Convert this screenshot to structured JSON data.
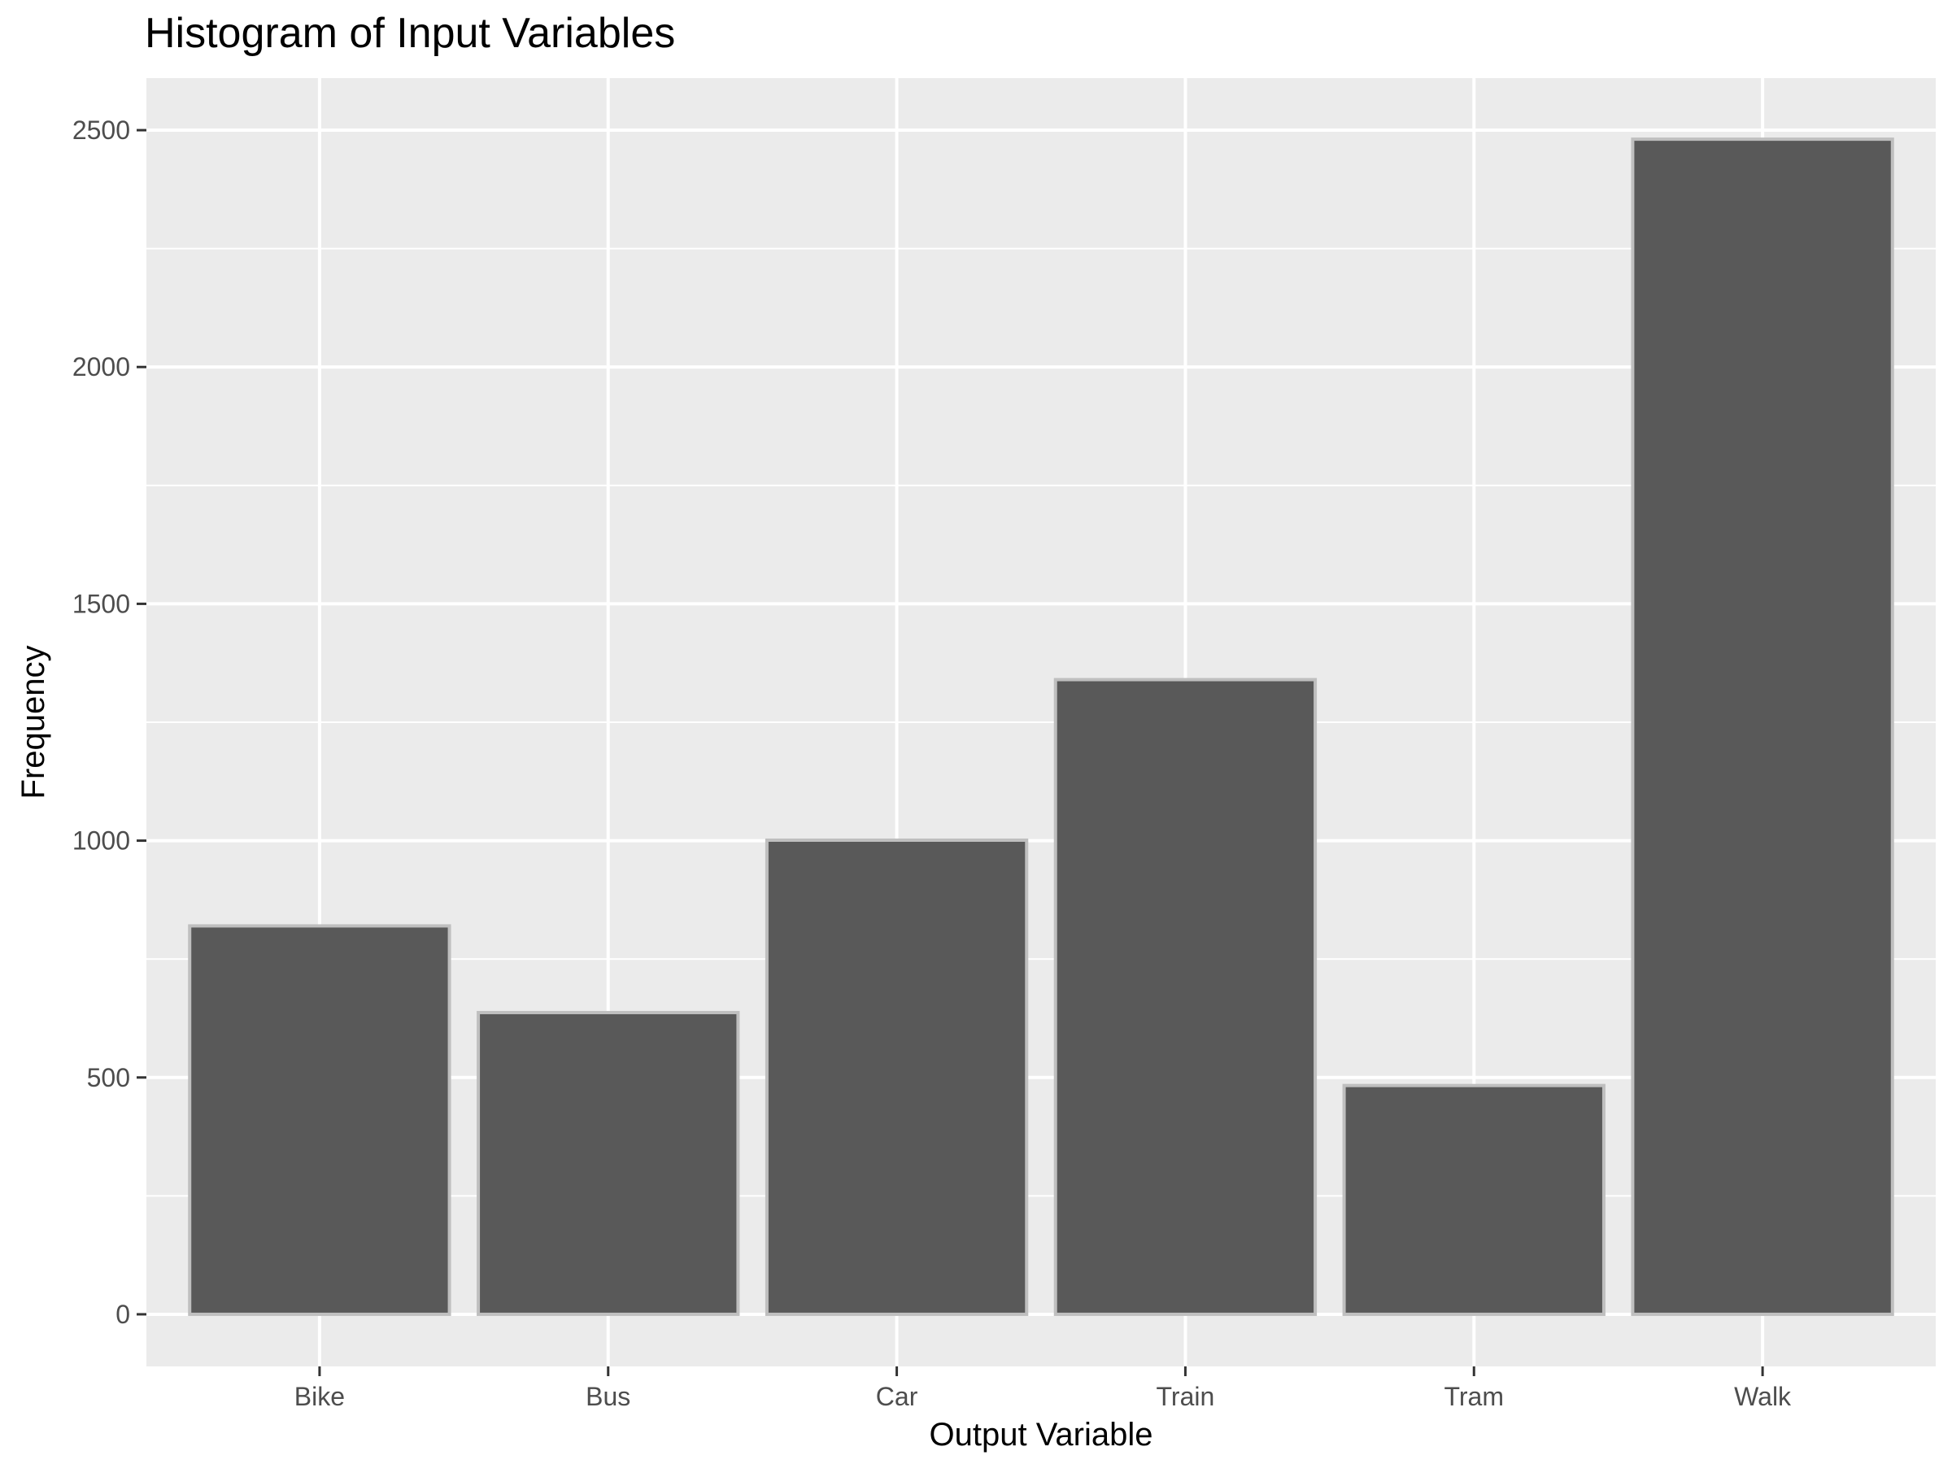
{
  "chart_data": {
    "type": "bar",
    "title": "Histogram of Input Variables",
    "xlabel": "Output Variable",
    "ylabel": "Frequency",
    "categories": [
      "Bike",
      "Bus",
      "Car",
      "Train",
      "Tram",
      "Walk"
    ],
    "values": [
      820,
      637,
      1001,
      1340,
      483,
      2481
    ],
    "ylim": [
      -110,
      2610
    ],
    "yticks": [
      0,
      500,
      1000,
      1500,
      2000,
      2500
    ],
    "yticks_minor": [
      250,
      750,
      1250,
      1750,
      2250
    ],
    "grid": true,
    "legend": "none",
    "colors": {
      "panel_background": "#EBEBEB",
      "grid_major": "#FFFFFF",
      "grid_minor": "#FFFFFF",
      "bar_fill": "#595959",
      "bar_outline": "#BFBFBF",
      "tick_label": "#4D4D4D",
      "tick_mark": "#333333",
      "text": "#000000"
    }
  }
}
